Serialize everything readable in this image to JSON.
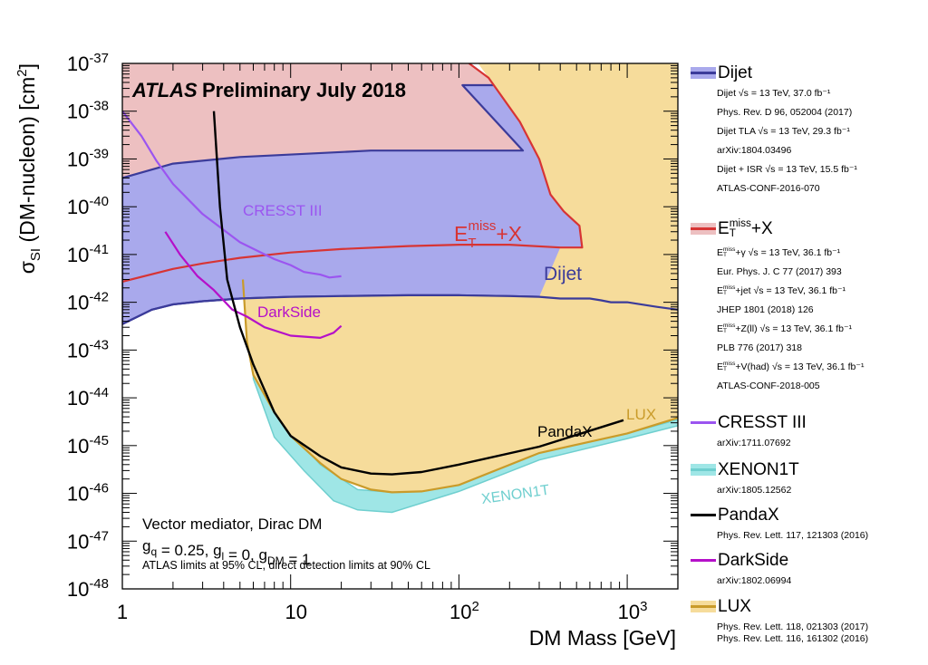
{
  "chart_data": {
    "type": "area",
    "title": "Preliminary July 2018",
    "experiment_label": "ATLAS",
    "xlabel": "DM Mass [GeV]",
    "ylabel": "σ_SI (DM-nucleon) [cm²]",
    "xscale": "log",
    "yscale": "log",
    "xlim": [
      1,
      2000
    ],
    "ylim": [
      1e-48,
      1e-37
    ],
    "x_ticks": [
      "1",
      "10",
      "10^2",
      "10^3"
    ],
    "y_ticks": [
      "10^-48",
      "10^-47",
      "10^-46",
      "10^-45",
      "10^-44",
      "10^-43",
      "10^-42",
      "10^-41",
      "10^-40",
      "10^-39",
      "10^-38",
      "10^-37"
    ],
    "annotations": {
      "model": "Vector mediator, Dirac DM",
      "couplings": "g_q = 0.25, g_l = 0, g_DM = 1",
      "cl_note": "ATLAS limits at 95% CL, direct detection limits at 90% CL"
    },
    "curve_labels": {
      "cresst": "CRESST III",
      "etmiss": "E_T^miss+X",
      "dijet": "Dijet",
      "darkside": "DarkSide",
      "pandax": "PandaX",
      "lux": "LUX",
      "xenon": "XENON1T"
    },
    "series": [
      {
        "name": "Dijet",
        "color": "#a9a9ec",
        "line_color": "#3b3b9a",
        "kind": "band",
        "outline": [
          [
            1,
            3.5e-43
          ],
          [
            1.5,
            7e-43
          ],
          [
            2,
            9e-43
          ],
          [
            3,
            1.05e-42
          ],
          [
            5,
            1.2e-42
          ],
          [
            10,
            1.3e-42
          ],
          [
            20,
            1.35e-42
          ],
          [
            50,
            1.4e-42
          ],
          [
            100,
            1.4e-42
          ],
          [
            200,
            1.35e-42
          ],
          [
            300,
            1.3e-42
          ],
          [
            400,
            1.2e-42
          ],
          [
            500,
            1.2e-42
          ],
          [
            600,
            1.2e-42
          ],
          [
            700,
            1.1e-42
          ],
          [
            800,
            1e-42
          ],
          [
            1000,
            1e-42
          ],
          [
            1500,
            8e-43
          ],
          [
            2000,
            7e-43
          ],
          [
            2000,
            3.5e-38
          ],
          [
            105,
            3.5e-38
          ],
          [
            240,
            1.5e-39
          ],
          [
            30,
            1.5e-39
          ],
          [
            5,
            1.1e-39
          ],
          [
            2,
            8e-40
          ],
          [
            1,
            4e-40
          ]
        ]
      },
      {
        "name": "E_T^miss+X",
        "color": "#edc0c1",
        "line_color": "#d73434",
        "kind": "band",
        "outline": [
          [
            1,
            2.7e-42
          ],
          [
            2,
            5e-42
          ],
          [
            3,
            6.5e-42
          ],
          [
            5,
            8.5e-42
          ],
          [
            10,
            1.1e-41
          ],
          [
            20,
            1.3e-41
          ],
          [
            50,
            1.5e-41
          ],
          [
            100,
            1.6e-41
          ],
          [
            200,
            1.6e-41
          ],
          [
            400,
            1.4e-41
          ],
          [
            540,
            1.4e-41
          ],
          [
            520,
            4e-41
          ],
          [
            420,
            8e-41
          ],
          [
            350,
            1.8e-40
          ],
          [
            300,
            1e-39
          ],
          [
            230,
            6e-39
          ],
          [
            150,
            5e-38
          ],
          [
            115,
            1e-37
          ],
          [
            1,
            1e-37
          ]
        ]
      },
      {
        "name": "CRESST III",
        "color": "#9b55f0",
        "kind": "line",
        "points": [
          [
            1,
            1e-38
          ],
          [
            1.3,
            3e-39
          ],
          [
            1.6,
            9e-40
          ],
          [
            2,
            3e-40
          ],
          [
            3,
            7e-41
          ],
          [
            5,
            1.8e-41
          ],
          [
            8,
            8e-42
          ],
          [
            10,
            6e-42
          ],
          [
            12,
            4.3e-42
          ],
          [
            15,
            3.8e-42
          ],
          [
            17,
            3.3e-42
          ],
          [
            20,
            3.5e-42
          ]
        ]
      },
      {
        "name": "XENON1T",
        "color": "#9fe6e6",
        "line_color": "#6fcfcf",
        "kind": "band",
        "outline": [
          [
            6,
            2.5e-44
          ],
          [
            8,
            1.5e-45
          ],
          [
            12,
            3e-46
          ],
          [
            18,
            7e-47
          ],
          [
            25,
            4.5e-47
          ],
          [
            40,
            4e-47
          ],
          [
            100,
            1.1e-46
          ],
          [
            300,
            5e-46
          ],
          [
            1000,
            1.4e-45
          ],
          [
            2000,
            2.6e-45
          ],
          [
            2000,
            3.5e-45
          ],
          [
            1000,
            1.8e-45
          ],
          [
            300,
            7e-46
          ],
          [
            100,
            1.5e-46
          ],
          [
            60,
            1.1e-46
          ],
          [
            40,
            1.05e-46
          ],
          [
            25,
            1.2e-46
          ],
          [
            15,
            4e-46
          ],
          [
            10,
            2e-45
          ],
          [
            8,
            7e-45
          ],
          [
            6,
            5e-44
          ]
        ]
      },
      {
        "name": "LUX",
        "color": "#f6dc9b",
        "line_color": "#c99b2a",
        "kind": "band",
        "outline": [
          [
            5.2,
            3e-42
          ],
          [
            5.5,
            1.5e-43
          ],
          [
            6,
            3e-44
          ],
          [
            8,
            5e-45
          ],
          [
            10,
            1.6e-45
          ],
          [
            15,
            4.3e-46
          ],
          [
            20,
            2e-46
          ],
          [
            30,
            1.2e-46
          ],
          [
            40,
            1.05e-46
          ],
          [
            60,
            1.1e-46
          ],
          [
            100,
            1.5e-46
          ],
          [
            300,
            7e-46
          ],
          [
            1000,
            1.8e-45
          ],
          [
            2000,
            3.8e-45
          ],
          [
            2000,
            1e-37
          ],
          [
            130,
            1e-37
          ],
          [
            150,
            5e-38
          ],
          [
            230,
            6e-39
          ],
          [
            300,
            1e-39
          ],
          [
            350,
            1.8e-40
          ],
          [
            420,
            8e-41
          ],
          [
            520,
            4e-41
          ],
          [
            540,
            1.4e-41
          ],
          [
            400,
            1.4e-41
          ],
          [
            300,
            1.3e-42
          ],
          [
            200,
            1.35e-42
          ],
          [
            100,
            1.4e-42
          ],
          [
            50,
            1.4e-42
          ],
          [
            20,
            1.35e-42
          ],
          [
            10,
            1.3e-42
          ],
          [
            5.2,
            1.2e-42
          ]
        ]
      },
      {
        "name": "DarkSide",
        "color": "#b510c9",
        "kind": "line",
        "points": [
          [
            1.8,
            3e-41
          ],
          [
            2.2,
            1e-41
          ],
          [
            2.8,
            3.5e-42
          ],
          [
            3.5,
            1.8e-42
          ],
          [
            4.5,
            7e-43
          ],
          [
            5.5,
            5e-43
          ],
          [
            7,
            3e-43
          ],
          [
            10,
            2e-43
          ],
          [
            15,
            1.8e-43
          ],
          [
            18,
            2.3e-43
          ],
          [
            20,
            3.2e-43
          ]
        ]
      },
      {
        "name": "PandaX",
        "color": "#000000",
        "kind": "line",
        "points": [
          [
            3.5,
            1e-38
          ],
          [
            3.8,
            1e-40
          ],
          [
            4.2,
            3e-42
          ],
          [
            5,
            3e-43
          ],
          [
            6,
            5e-44
          ],
          [
            8,
            5e-45
          ],
          [
            10,
            1.6e-45
          ],
          [
            15,
            6e-46
          ],
          [
            20,
            3.5e-46
          ],
          [
            30,
            2.6e-46
          ],
          [
            40,
            2.5e-46
          ],
          [
            60,
            2.8e-46
          ],
          [
            100,
            4e-46
          ],
          [
            300,
            9.5e-46
          ],
          [
            950,
            3.4e-45
          ]
        ]
      }
    ]
  },
  "legend": [
    {
      "key": "dijet",
      "name": "Dijet",
      "refs": [
        "Dijet √s = 13 TeV, 37.0 fb⁻¹",
        "Phys. Rev. D 96, 052004 (2017)",
        "Dijet TLA √s = 13 TeV, 29.3 fb⁻¹",
        "arXiv:1804.03496",
        "Dijet + ISR √s = 13 TeV, 15.5 fb⁻¹",
        " ATLAS-CONF-2016-070"
      ]
    },
    {
      "key": "etmiss",
      "name": "E_T^miss+X",
      "refs": [
        "E_T^miss+γ √s = 13 TeV, 36.1 fb⁻¹",
        "Eur. Phys. J. C 77 (2017) 393",
        "E_T^miss+jet √s = 13 TeV, 36.1 fb⁻¹",
        "JHEP 1801 (2018) 126",
        "E_T^miss+Z(ll) √s = 13 TeV, 36.1 fb⁻¹",
        "PLB 776 (2017) 318",
        "E_T^miss+V(had) √s = 13 TeV, 36.1 fb⁻¹",
        "ATLAS-CONF-2018-005"
      ]
    },
    {
      "key": "cresst",
      "name": "CRESST III",
      "refs": [
        "arXiv:1711.07692"
      ]
    },
    {
      "key": "xenon",
      "name": "XENON1T",
      "refs": [
        "arXiv:1805.12562"
      ]
    },
    {
      "key": "pandax",
      "name": "PandaX",
      "refs": [
        "Phys. Rev. Lett. 117, 121303 (2016)"
      ]
    },
    {
      "key": "darkside",
      "name": "DarkSide",
      "refs": [
        "arXiv:1802.06994"
      ]
    },
    {
      "key": "lux",
      "name": "LUX",
      "refs": [
        "Phys. Rev. Lett. 118, 021303 (2017)",
        "Phys. Rev. Lett. 116, 161302 (2016)"
      ]
    }
  ]
}
